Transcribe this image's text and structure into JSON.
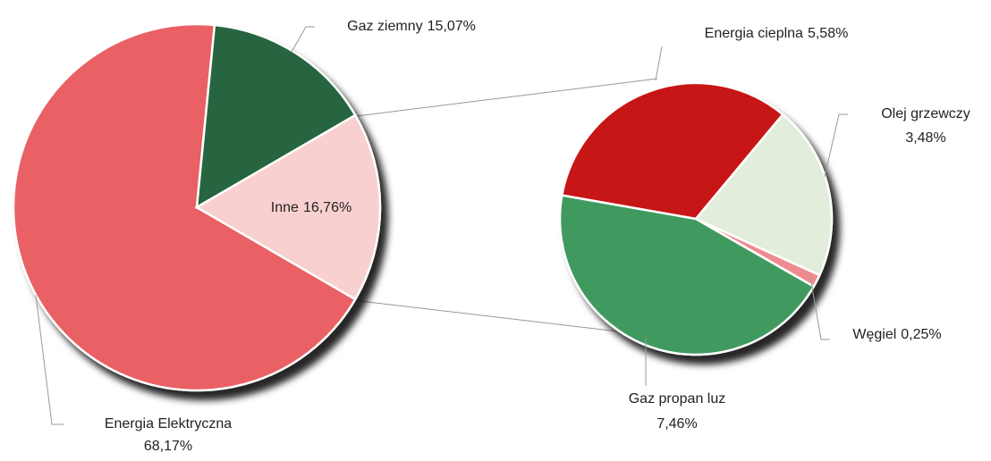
{
  "chart_data": {
    "type": "pie-of-pie",
    "main": {
      "categories": [
        "Energia Elektryczna",
        "Gaz ziemny",
        "Inne"
      ],
      "values": [
        68.17,
        15.07,
        16.76
      ],
      "value_labels": [
        "68,17%",
        "15,07%",
        "16,76%"
      ],
      "colors": [
        "#e96065",
        "#276540",
        "#f8d0cf"
      ]
    },
    "secondary": {
      "categories": [
        "Energia cieplna",
        "Olej grzewczy",
        "Węgiel",
        "Gaz propan luz"
      ],
      "values": [
        5.58,
        3.48,
        0.25,
        7.46
      ],
      "value_labels": [
        "5,58%",
        "3,48%",
        "0,25%",
        "7,46%"
      ],
      "colors": [
        "#c71518",
        "#e2eedb",
        "#ef8a8f",
        "#3f9a5e"
      ]
    }
  }
}
